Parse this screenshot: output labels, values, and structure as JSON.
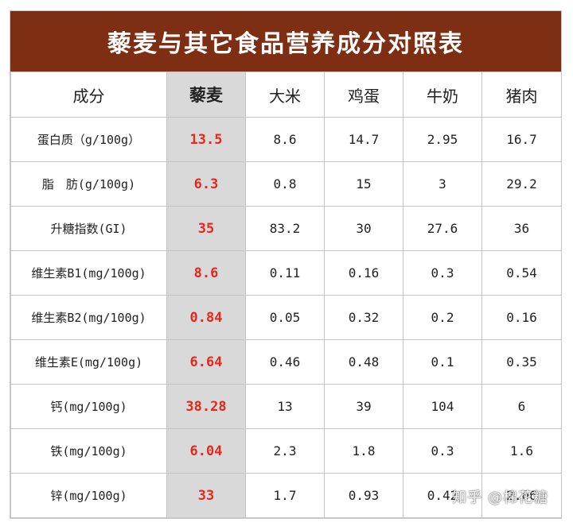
{
  "title": "藜麦与其它食品营养成分对照表",
  "columns": [
    "成分",
    "藜麦",
    "大米",
    "鸡蛋",
    "牛奶",
    "猪肉"
  ],
  "rows": [
    {
      "label": "蛋白质（g/100g）",
      "values": [
        "13.5",
        "8.6",
        "14.7",
        "2.95",
        "16.7"
      ]
    },
    {
      "label": "脂　肪(g/100g)",
      "values": [
        "6.3",
        "0.8",
        "15",
        "3",
        "29.2"
      ]
    },
    {
      "label": "升糖指数(GI)",
      "values": [
        "35",
        "83.2",
        "30",
        "27.6",
        "36"
      ]
    },
    {
      "label": "维生素B1(mg/100g)",
      "values": [
        "8.6",
        "0.11",
        "0.16",
        "0.3",
        "0.54"
      ]
    },
    {
      "label": "维生素B2(mg/100g)",
      "values": [
        "0.84",
        "0.05",
        "0.32",
        "0.2",
        "0.16"
      ]
    },
    {
      "label": "维生素E(mg/100g)",
      "values": [
        "6.64",
        "0.46",
        "0.48",
        "0.1",
        "0.35"
      ]
    },
    {
      "label": "钙(mg/100g)",
      "values": [
        "38.28",
        "13",
        "39",
        "104",
        "6"
      ]
    },
    {
      "label": "铁(mg/100g)",
      "values": [
        "6.04",
        "2.3",
        "1.8",
        "0.3",
        "1.6"
      ]
    },
    {
      "label": "锌(mg/100g)",
      "values": [
        "33",
        "1.7",
        "0.93",
        "0.42",
        "2.06"
      ]
    }
  ],
  "watermark": "知乎 @棉花糖",
  "colors": {
    "title_background": "#7e2e12",
    "highlight_text": "#e8261a",
    "highlight_column_background": "#d9d9d9"
  }
}
